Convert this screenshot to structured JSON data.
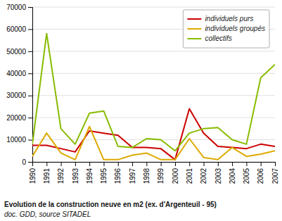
{
  "chart_data": {
    "type": "line",
    "title": "Evolution de la construction neuve en m2 (ex. d'Argenteuil - 95)",
    "subtitle": "doc. GDD, source SITADEL",
    "x": [
      1990,
      1991,
      1992,
      1993,
      1994,
      1995,
      1996,
      1997,
      1998,
      1999,
      2000,
      2001,
      2002,
      2003,
      2004,
      2005,
      2006,
      2007
    ],
    "series": [
      {
        "name": "individuels purs",
        "color": "#cc0000",
        "values": [
          7500,
          7500,
          6000,
          4500,
          14000,
          13000,
          12000,
          6500,
          6500,
          6000,
          1000,
          24000,
          13000,
          7000,
          6500,
          6000,
          8000,
          7000
        ]
      },
      {
        "name": "individuels groupés",
        "color": "#ddaa00",
        "values": [
          2500,
          13000,
          4000,
          1000,
          16000,
          1000,
          1000,
          3000,
          4000,
          1000,
          1000,
          10500,
          2000,
          1000,
          6500,
          2500,
          3500,
          5000
        ]
      },
      {
        "name": "collectifs",
        "color": "#88bb00",
        "values": [
          8000,
          58000,
          15000,
          8000,
          22000,
          23000,
          7000,
          6500,
          10500,
          10000,
          5000,
          13000,
          15000,
          15500,
          10000,
          8000,
          38000,
          44000
        ]
      }
    ],
    "xlim": [
      1990,
      2007
    ],
    "xticks": [
      1990,
      1991,
      1992,
      1993,
      1994,
      1995,
      1996,
      1997,
      1998,
      1999,
      2000,
      2001,
      2002,
      2003,
      2004,
      2005,
      2006,
      2007
    ],
    "ylim": [
      0,
      70000
    ],
    "yticks": [
      0,
      10000,
      20000,
      30000,
      40000,
      50000,
      60000,
      70000
    ],
    "grid": true,
    "legend": "upper right"
  }
}
